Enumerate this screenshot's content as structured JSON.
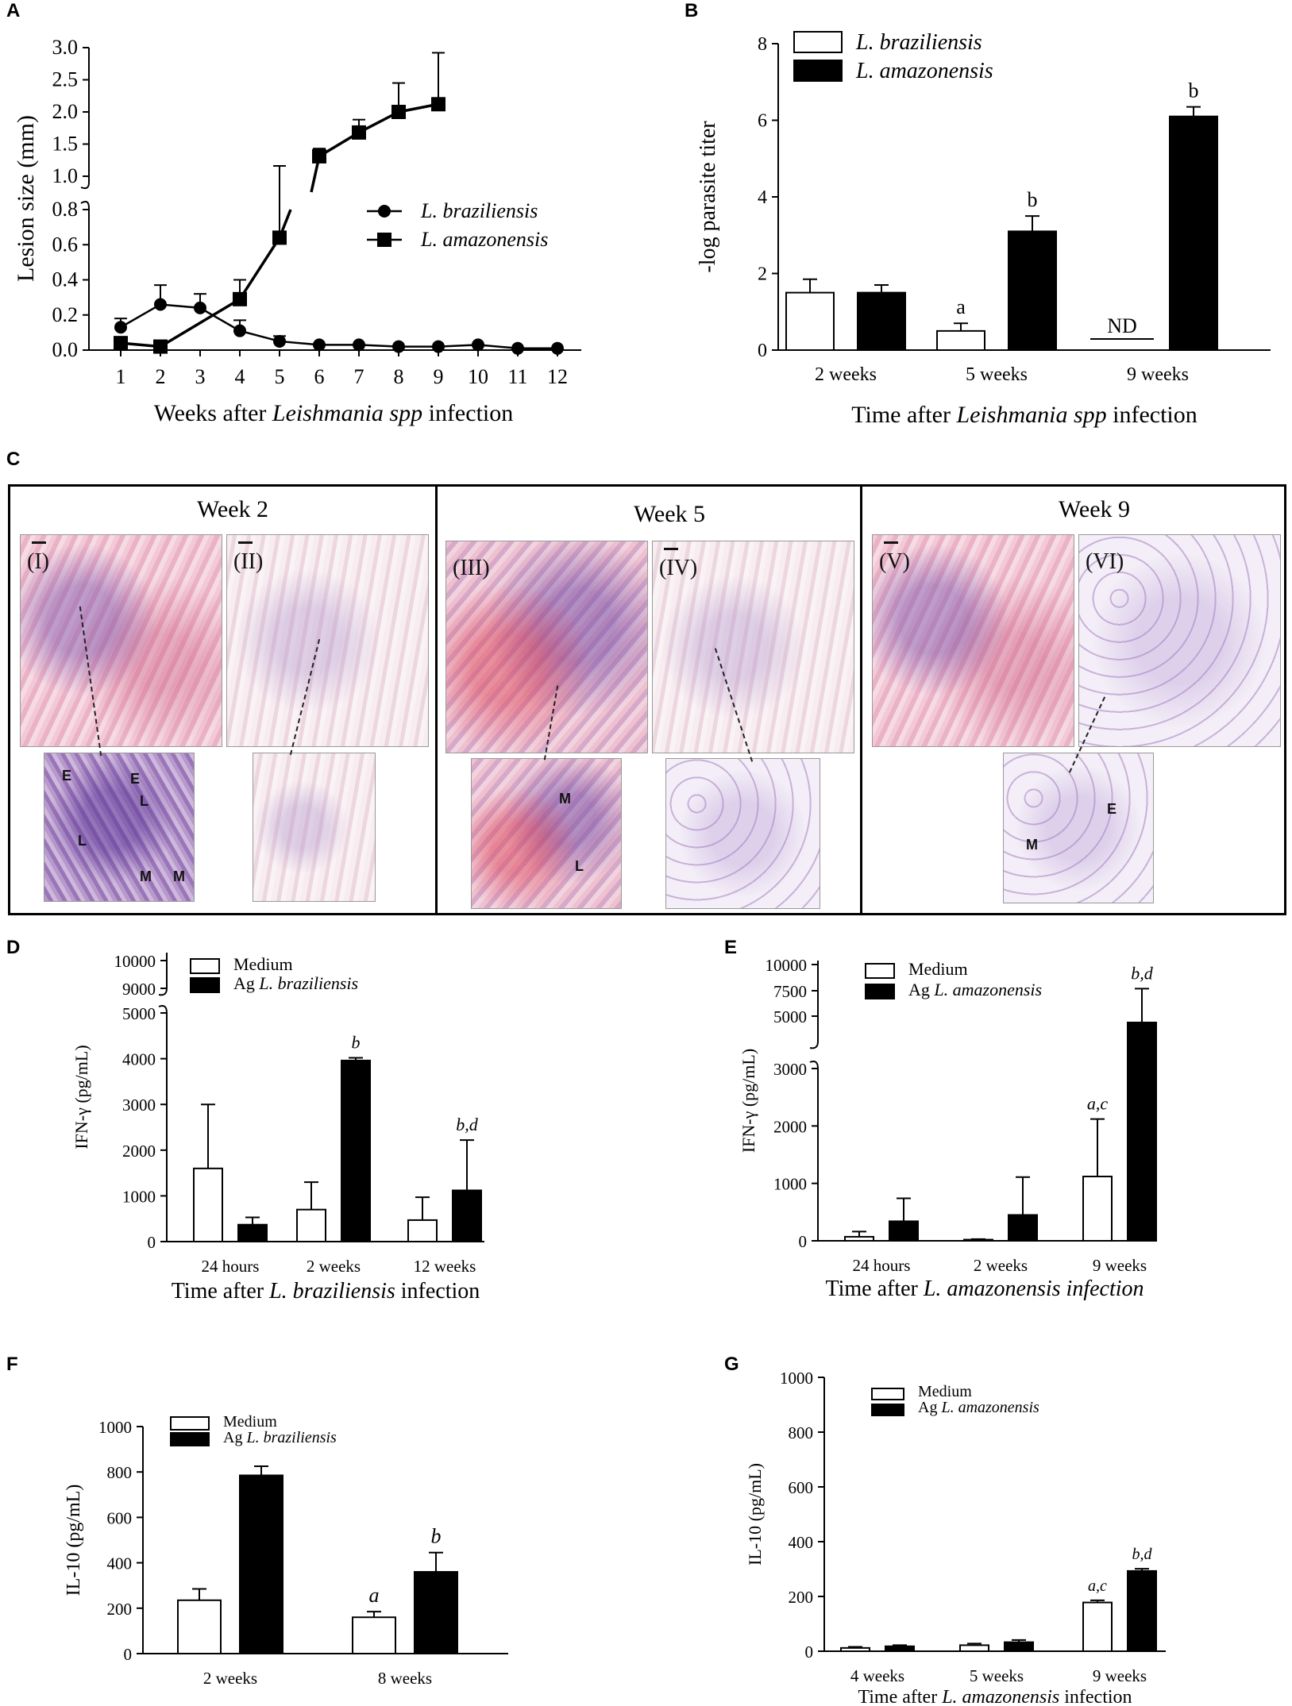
{
  "panels": {
    "a": "A",
    "b": "B",
    "c": "C",
    "d": "D",
    "e": "E",
    "f": "F",
    "g": "G"
  },
  "chart_data": [
    {
      "id": "A",
      "type": "line",
      "xlabel_parts": [
        "Weeks after ",
        "Leishmania spp",
        " infection"
      ],
      "ylabel": "Lesion size (mm)",
      "x_ticks": [
        "1",
        "2",
        "3",
        "4",
        "5",
        "6",
        "7",
        "8",
        "9",
        "10",
        "11",
        "12"
      ],
      "y_ticks_lower": [
        "0.0",
        "0.2",
        "0.4",
        "0.6",
        "0.8"
      ],
      "y_ticks_upper": [
        "1.0",
        "1.5",
        "2.0",
        "2.5",
        "3.0"
      ],
      "ylim": [
        0,
        3.0
      ],
      "y_break": [
        0.8,
        1.0
      ],
      "legend_position": "center-right",
      "series": [
        {
          "name": "L. braziliensis",
          "marker": "circle",
          "x": [
            1,
            2,
            3,
            4,
            5,
            6,
            7,
            8,
            9,
            10,
            11,
            12
          ],
          "y": [
            0.13,
            0.26,
            0.24,
            0.11,
            0.05,
            0.03,
            0.03,
            0.02,
            0.02,
            0.03,
            0.01,
            0.01
          ],
          "err": [
            0.05,
            0.11,
            0.08,
            0.06,
            0.03,
            0,
            0,
            0,
            0,
            0,
            0,
            0
          ]
        },
        {
          "name": "L. amazonensis",
          "marker": "square",
          "x": [
            1,
            2,
            4,
            5,
            6,
            7,
            8,
            9
          ],
          "y": [
            0.04,
            0.02,
            0.29,
            0.64,
            1.31,
            1.68,
            2.0,
            2.12
          ],
          "err": [
            0,
            0,
            0.11,
            0.15,
            0.12,
            0.2,
            0.45,
            0.8
          ]
        }
      ]
    },
    {
      "id": "B",
      "type": "bar",
      "xlabel_parts": [
        "Time after ",
        "Leishmania spp",
        " infection"
      ],
      "ylabel": "-log parasite titer",
      "categories": [
        "2 weeks",
        "5 weeks",
        "9 weeks"
      ],
      "y_ticks": [
        "0",
        "2",
        "4",
        "6",
        "8"
      ],
      "ylim": [
        0,
        8
      ],
      "legend_position": "top-left",
      "series": [
        {
          "name": "L. braziliensis",
          "fill": "#ffffff",
          "values": [
            1.5,
            0.5,
            null
          ],
          "err": [
            0.35,
            0.2,
            0
          ],
          "sig": [
            "",
            "a",
            "ND"
          ]
        },
        {
          "name": "L. amazonensis",
          "fill": "#000000",
          "values": [
            1.5,
            3.1,
            6.1
          ],
          "err": [
            0.2,
            0.4,
            0.25
          ],
          "sig": [
            "",
            "b",
            "b"
          ]
        }
      ]
    },
    {
      "id": "D",
      "type": "bar",
      "xlabel_parts": [
        "Time after  ",
        "L. braziliensis",
        " infection"
      ],
      "ylabel": "IFN-γ (pg/mL)",
      "categories": [
        "24 hours",
        "2 weeks",
        "12 weeks"
      ],
      "y_ticks": [
        "0",
        "1000",
        "2000",
        "3000",
        "4000",
        "5000"
      ],
      "y_ticks_upper": [
        "9000",
        "10000"
      ],
      "ylim": [
        0,
        5000
      ],
      "legend_position": "top-left",
      "series": [
        {
          "name": "Medium",
          "fill": "#ffffff",
          "values": [
            1600,
            700,
            470
          ],
          "err": [
            1400,
            600,
            500
          ],
          "sig": [
            "",
            "",
            ""
          ]
        },
        {
          "name": "Ag L. braziliensis",
          "fill": "#000000",
          "values": [
            370,
            3960,
            1120
          ],
          "err": [
            160,
            60,
            1100
          ],
          "sig": [
            "",
            "b",
            "b,d"
          ]
        }
      ]
    },
    {
      "id": "E",
      "type": "bar",
      "xlabel_parts": [
        "Time after ",
        "L. amazonensis infection",
        ""
      ],
      "ylabel": "IFN-γ (pg/mL)",
      "categories": [
        "24 hours",
        "2 weeks",
        "9 weeks"
      ],
      "y_ticks": [
        "0",
        "1000",
        "2000",
        "3000"
      ],
      "y_ticks_upper": [
        "5000",
        "7500",
        "10000"
      ],
      "ylim": [
        0,
        10000
      ],
      "legend_position": "top-left",
      "series": [
        {
          "name": "Medium",
          "fill": "#ffffff",
          "values": [
            70,
            20,
            1120
          ],
          "err": [
            90,
            10,
            1000
          ],
          "sig": [
            "",
            "",
            "a,c"
          ]
        },
        {
          "name": "Ag L. amazonensis",
          "fill": "#000000",
          "values": [
            340,
            450,
            4500
          ],
          "err": [
            400,
            660,
            3200
          ],
          "sig": [
            "",
            "",
            "b,d"
          ]
        }
      ]
    },
    {
      "id": "F",
      "type": "bar",
      "xlabel_parts": [
        "",
        "",
        ""
      ],
      "ylabel": "IL-10 (pg/mL)",
      "categories": [
        "2 weeks",
        "8 weeks"
      ],
      "y_ticks": [
        "0",
        "200",
        "400",
        "600",
        "800",
        "1000"
      ],
      "ylim": [
        0,
        1000
      ],
      "legend_position": "top-left",
      "series": [
        {
          "name": "Medium",
          "fill": "#ffffff",
          "values": [
            235,
            160
          ],
          "err": [
            50,
            25
          ],
          "sig": [
            "",
            "a"
          ]
        },
        {
          "name": "Ag L. braziliensis",
          "fill": "#000000",
          "values": [
            785,
            360
          ],
          "err": [
            40,
            85
          ],
          "sig": [
            "",
            "b"
          ]
        }
      ]
    },
    {
      "id": "G",
      "type": "bar",
      "xlabel_parts": [
        "Time after ",
        "L. amazonensis",
        " infection"
      ],
      "ylabel": "IL-10 (pg/mL)",
      "categories": [
        "4 weeks",
        "5 weeks",
        "9 weeks"
      ],
      "y_ticks": [
        "0",
        "200",
        "400",
        "600",
        "800",
        "1000"
      ],
      "ylim": [
        0,
        1000
      ],
      "legend_position": "top-left",
      "series": [
        {
          "name": "Medium",
          "fill": "#ffffff",
          "values": [
            12,
            22,
            178
          ],
          "err": [
            4,
            6,
            8
          ],
          "sig": [
            "",
            "",
            "a,c"
          ]
        },
        {
          "name": "Ag L. amazonensis",
          "fill": "#000000",
          "values": [
            18,
            33,
            293
          ],
          "err": [
            4,
            8,
            8
          ],
          "sig": [
            "",
            "",
            "b,d"
          ]
        }
      ]
    }
  ],
  "histology": {
    "weeks": [
      "Week 2",
      "Week 5",
      "Week 9"
    ],
    "images": [
      {
        "label": "(I)"
      },
      {
        "label": "(II)"
      },
      {
        "label": "(III)"
      },
      {
        "label": "(IV)"
      },
      {
        "label": "(V)"
      },
      {
        "label": "(VI)"
      }
    ],
    "cell_labels": [
      "E",
      "E",
      "L",
      "L",
      "M",
      "M",
      "M",
      "L",
      "E",
      "M"
    ]
  }
}
